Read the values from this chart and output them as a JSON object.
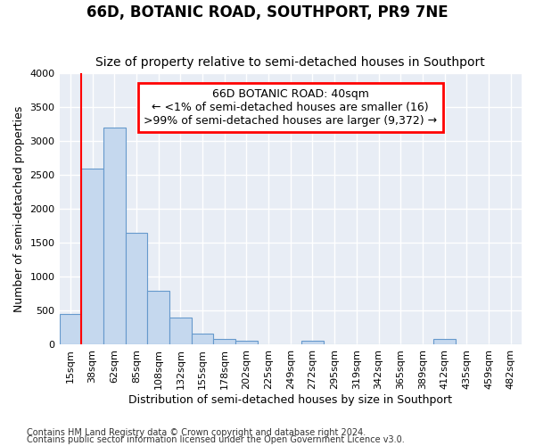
{
  "title": "66D, BOTANIC ROAD, SOUTHPORT, PR9 7NE",
  "subtitle": "Size of property relative to semi-detached houses in Southport",
  "xlabel": "Distribution of semi-detached houses by size in Southport",
  "ylabel": "Number of semi-detached properties",
  "bin_labels": [
    "15sqm",
    "38sqm",
    "62sqm",
    "85sqm",
    "108sqm",
    "132sqm",
    "155sqm",
    "178sqm",
    "202sqm",
    "225sqm",
    "249sqm",
    "272sqm",
    "295sqm",
    "319sqm",
    "342sqm",
    "365sqm",
    "389sqm",
    "412sqm",
    "435sqm",
    "459sqm",
    "482sqm"
  ],
  "bar_values": [
    450,
    2600,
    3200,
    1650,
    800,
    400,
    160,
    80,
    60,
    0,
    0,
    60,
    0,
    0,
    0,
    0,
    0,
    80,
    0,
    0,
    0
  ],
  "bar_color": "#c5d8ee",
  "bar_edge_color": "#6699cc",
  "red_line_x": 0,
  "annotation_line1": "66D BOTANIC ROAD: 40sqm",
  "annotation_line2": "← <1% of semi-detached houses are smaller (16)",
  "annotation_line3": ">99% of semi-detached houses are larger (9,372) →",
  "annotation_box_color": "white",
  "annotation_box_edge_color": "red",
  "ylim": [
    0,
    4000
  ],
  "yticks": [
    0,
    500,
    1000,
    1500,
    2000,
    2500,
    3000,
    3500,
    4000
  ],
  "footer1": "Contains HM Land Registry data © Crown copyright and database right 2024.",
  "footer2": "Contains public sector information licensed under the Open Government Licence v3.0.",
  "bg_color": "#ffffff",
  "plot_bg_color": "#e8edf5",
  "grid_color": "#ffffff",
  "title_fontsize": 12,
  "subtitle_fontsize": 10,
  "axis_label_fontsize": 9,
  "tick_fontsize": 8,
  "annotation_fontsize": 9,
  "footer_fontsize": 7
}
